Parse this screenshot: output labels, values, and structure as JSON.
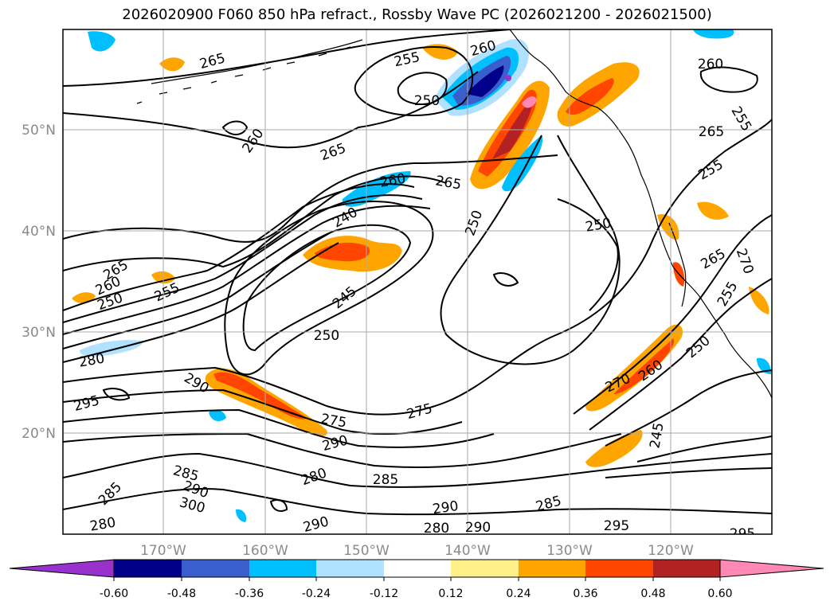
{
  "title": "2026020900 F060 850 hPa refract., Rossby Wave PC (2026021200 - 2026021500)",
  "lat_labels": [
    "50°N",
    "40°N",
    "30°N",
    "20°N"
  ],
  "lon_labels": [
    "170°W",
    "160°W",
    "150°W",
    "140°W",
    "130°W",
    "120°W"
  ],
  "contour_labels": [
    "265",
    "255",
    "260",
    "250",
    "260",
    "265",
    "260",
    "265",
    "255",
    "265",
    "260",
    "240",
    "250",
    "250",
    "265",
    "255",
    "260",
    "250",
    "255",
    "245",
    "265",
    "270",
    "255",
    "280",
    "250",
    "290",
    "275",
    "275",
    "270",
    "260",
    "250",
    "295",
    "290",
    "280",
    "285",
    "245",
    "285",
    "290",
    "300",
    "280",
    "285",
    "290",
    "290",
    "280",
    "290",
    "285",
    "295",
    "295"
  ],
  "colorbar": {
    "tick_labels": [
      "-0.60",
      "-0.48",
      "-0.36",
      "-0.24",
      "-0.12",
      "0.12",
      "0.24",
      "0.36",
      "0.48",
      "0.60"
    ],
    "colors": [
      "#9932cc",
      "#00008b",
      "#3a5fcd",
      "#00bfff",
      "#b0e2ff",
      "#ffffff",
      "#fff08a",
      "#ffa500",
      "#ff4500",
      "#b22222",
      "#ff88b4"
    ]
  }
}
